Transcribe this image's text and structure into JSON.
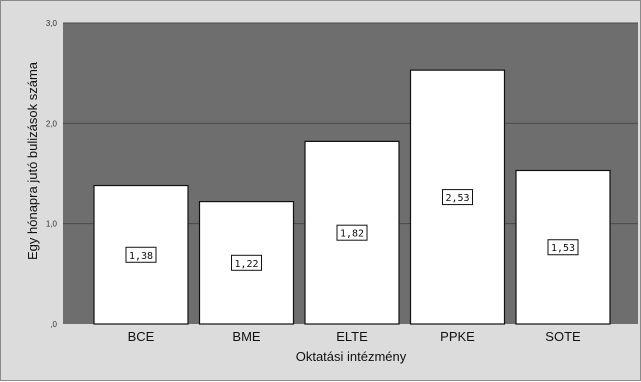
{
  "chart_data": {
    "type": "bar",
    "categories": [
      "BCE",
      "BME",
      "ELTE",
      "PPKE",
      "SOTE"
    ],
    "values": [
      1.38,
      1.22,
      1.82,
      2.53,
      1.53
    ],
    "data_labels": [
      "1,38",
      "1,22",
      "1,82",
      "2,53",
      "1,53"
    ],
    "title": "",
    "xlabel": "Oktatási intézmény",
    "ylabel": "Egy hónapra jutó bulizások száma",
    "ylim": [
      0,
      3
    ],
    "yticks": [
      0,
      1,
      2,
      3
    ],
    "ytick_labels": [
      ",0",
      "1,0",
      "2,0",
      "3,0"
    ],
    "grid": true,
    "legend": "none",
    "colors": {
      "plot_background": "#6e6e6e",
      "bar_fill": "#ffffff",
      "bar_stroke": "#111111",
      "gridline": "#4a4a4a",
      "frame_background": "#dcdcdc"
    }
  }
}
